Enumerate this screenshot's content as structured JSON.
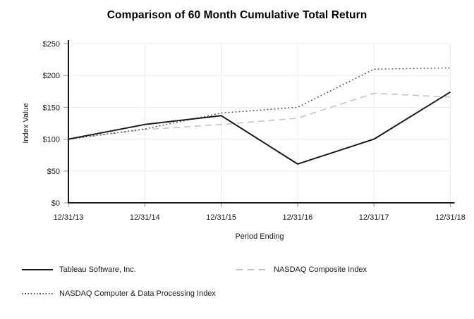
{
  "chart_data": {
    "type": "line",
    "title": "Comparison of 60 Month Cumulative Total Return",
    "xlabel": "Period Ending",
    "ylabel": "Index Value",
    "categories": [
      "12/31/13",
      "12/31/14",
      "12/31/15",
      "12/31/16",
      "12/31/17",
      "12/31/18"
    ],
    "series": [
      {
        "name": "Tableau Software, Inc.",
        "style": "solid",
        "color": "#1a1a1a",
        "values": [
          100,
          123,
          137,
          61,
          100,
          174
        ]
      },
      {
        "name": "NASDAQ Composite Index",
        "style": "dashed",
        "color": "#c2c2c2",
        "values": [
          100,
          115,
          123,
          133,
          172,
          166
        ]
      },
      {
        "name": "NASDAQ Computer & Data Processing Index",
        "style": "dotted",
        "color": "#4d4d4d",
        "values": [
          100,
          116,
          141,
          150,
          210,
          212
        ]
      }
    ],
    "ylim": [
      0,
      250
    ],
    "y_ticks": [
      "$0",
      "$50",
      "$100",
      "$150",
      "$200",
      "$250"
    ],
    "grid": true,
    "legend_position": "bottom"
  },
  "colors": {
    "axis": "#1a1a1a",
    "grid": "#ececec",
    "tick_mark": "#a6a6a6",
    "tick_text": "#1a1a1a",
    "background": "#ffffff"
  }
}
